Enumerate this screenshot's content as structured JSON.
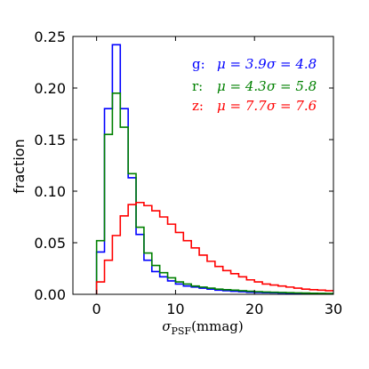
{
  "chart_data": {
    "type": "step-histogram",
    "title": "",
    "xlabel": "σPSF(mmag)",
    "xlabel_parts": {
      "sym": "σ",
      "sub": "PSF",
      "unit": "(mmag)"
    },
    "ylabel": "fraction",
    "xlim": [
      -3,
      30
    ],
    "ylim": [
      0,
      0.25
    ],
    "xticks": [
      0,
      10,
      20,
      30
    ],
    "yticks": [
      0.0,
      0.05,
      0.1,
      0.15,
      0.2,
      0.25
    ],
    "ytick_labels": [
      "0.00",
      "0.05",
      "0.10",
      "0.15",
      "0.20",
      "0.25"
    ],
    "bin_edges": [
      0,
      1,
      2,
      3,
      4,
      5,
      6,
      7,
      8,
      9,
      10,
      11,
      12,
      13,
      14,
      15,
      16,
      17,
      18,
      19,
      20,
      21,
      22,
      23,
      24,
      25,
      26,
      27,
      28,
      29,
      30
    ],
    "grid": false,
    "legend_position": "top-right",
    "series": [
      {
        "name": "g",
        "color": "#0000ff",
        "legend": "g:  μ = 3.9   σ = 4.8",
        "legend_parts": {
          "band": "g:",
          "mu": "μ = 3.9",
          "sigma": "σ = 4.8"
        },
        "values": [
          0.041,
          0.18,
          0.242,
          0.18,
          0.113,
          0.058,
          0.033,
          0.022,
          0.017,
          0.013,
          0.01,
          0.008,
          0.007,
          0.006,
          0.005,
          0.004,
          0.0035,
          0.003,
          0.0025,
          0.002,
          0.0018,
          0.0016,
          0.0014,
          0.0012,
          0.001,
          0.0009,
          0.0008,
          0.0007,
          0.0006,
          0.0005
        ]
      },
      {
        "name": "r",
        "color": "#008000",
        "legend": "r:  μ = 4.3   σ = 5.8",
        "legend_parts": {
          "band": "r:",
          "mu": "μ = 4.3",
          "sigma": "σ = 5.8"
        },
        "values": [
          0.052,
          0.155,
          0.195,
          0.162,
          0.117,
          0.065,
          0.04,
          0.028,
          0.021,
          0.016,
          0.012,
          0.01,
          0.008,
          0.007,
          0.006,
          0.005,
          0.0045,
          0.004,
          0.0035,
          0.003,
          0.0025,
          0.0022,
          0.002,
          0.0018,
          0.0016,
          0.0014,
          0.0012,
          0.001,
          0.0009,
          0.0008
        ]
      },
      {
        "name": "z",
        "color": "#ff0000",
        "legend": "z:  μ = 7.7   σ = 7.6",
        "legend_parts": {
          "band": "z:",
          "mu": "μ = 7.7",
          "sigma": "σ = 7.6"
        },
        "values": [
          0.012,
          0.033,
          0.057,
          0.076,
          0.087,
          0.089,
          0.086,
          0.081,
          0.075,
          0.068,
          0.06,
          0.052,
          0.045,
          0.038,
          0.032,
          0.027,
          0.023,
          0.02,
          0.017,
          0.014,
          0.012,
          0.01,
          0.009,
          0.008,
          0.007,
          0.006,
          0.005,
          0.0045,
          0.004,
          0.0035
        ]
      }
    ]
  }
}
